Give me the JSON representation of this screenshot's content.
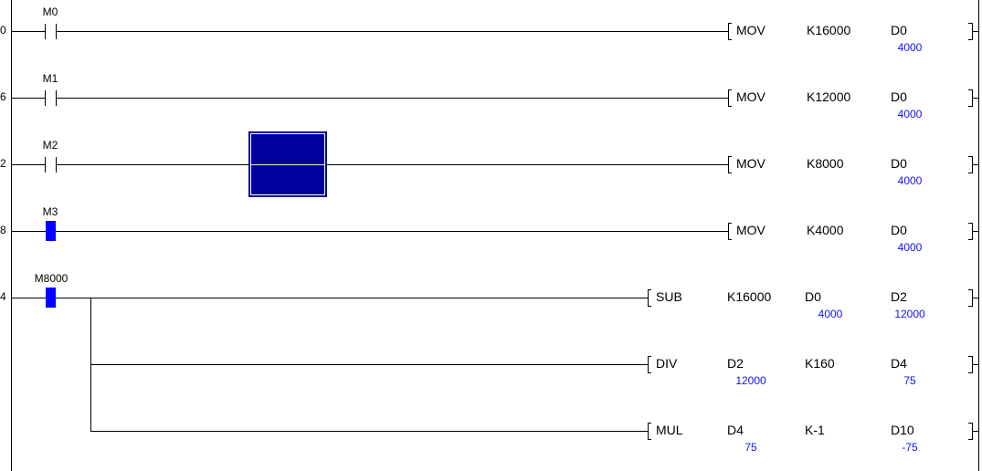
{
  "rungs": [
    {
      "step": "0",
      "contact": {
        "label": "M0",
        "state": "off"
      },
      "instructions": [
        {
          "mnemonic": "MOV",
          "operands": [
            "K16000",
            "D0"
          ],
          "values": [
            "",
            "4000"
          ]
        }
      ]
    },
    {
      "step": "6",
      "contact": {
        "label": "M1",
        "state": "off"
      },
      "instructions": [
        {
          "mnemonic": "MOV",
          "operands": [
            "K12000",
            "D0"
          ],
          "values": [
            "",
            "4000"
          ]
        }
      ]
    },
    {
      "step": "2",
      "contact": {
        "label": "M2",
        "state": "off"
      },
      "instructions": [
        {
          "mnemonic": "MOV",
          "operands": [
            "K8000",
            "D0"
          ],
          "values": [
            "",
            "4000"
          ]
        }
      ]
    },
    {
      "step": "8",
      "contact": {
        "label": "M3",
        "state": "on"
      },
      "instructions": [
        {
          "mnemonic": "MOV",
          "operands": [
            "K4000",
            "D0"
          ],
          "values": [
            "",
            "4000"
          ]
        }
      ]
    },
    {
      "step": "4",
      "contact": {
        "label": "M8000",
        "state": "on"
      },
      "instructions": [
        {
          "mnemonic": "SUB",
          "operands": [
            "K16000",
            "D0",
            "D2"
          ],
          "values": [
            "",
            "4000",
            "12000"
          ]
        },
        {
          "mnemonic": "DIV",
          "operands": [
            "D2",
            "K160",
            "D4"
          ],
          "values": [
            "12000",
            "",
            "75"
          ]
        },
        {
          "mnemonic": "MUL",
          "operands": [
            "D4",
            "K-1",
            "D10"
          ],
          "values": [
            "75",
            "",
            "-75"
          ]
        }
      ]
    }
  ],
  "colors": {
    "contact_on": "#0000ff",
    "cursor": "#0000a0",
    "monitor_value": "#1010ff"
  }
}
